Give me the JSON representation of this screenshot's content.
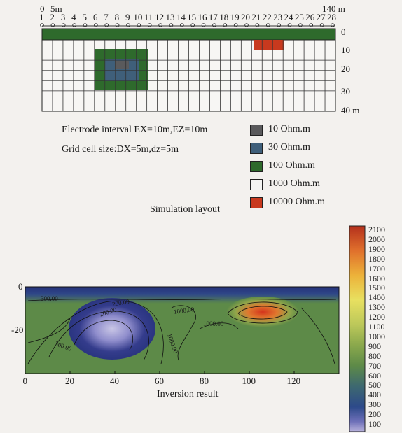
{
  "layout": {
    "top_axis_start": "0",
    "top_axis_5m": "5m",
    "top_axis_end": "140 m",
    "electrode_numbers": [
      "1",
      "2",
      "3",
      "4",
      "5",
      "6",
      "7",
      "8",
      "9",
      "10",
      "11",
      "12",
      "13",
      "14",
      "15",
      "16",
      "17",
      "18",
      "19",
      "20",
      "21",
      "22",
      "23",
      "24",
      "25",
      "26",
      "27",
      "28"
    ],
    "depth_labels": [
      "0",
      "10",
      "20",
      "30",
      "40 m"
    ],
    "electrode_interval": "Electrode interval EX=10m,EZ=10m",
    "grid_cell_size": "Grid cell size:DX=5m,dz=5m",
    "caption": "Simulation layout"
  },
  "legend": [
    {
      "label": "10 Ohm.m",
      "color": "#5a5a5c"
    },
    {
      "label": "30 Ohm.m",
      "color": "#3f5f7a"
    },
    {
      "label": "100 Ohm.m",
      "color": "#2e6a2c"
    },
    {
      "label": "1000 Ohm.m",
      "color": "#f4f4f2"
    },
    {
      "label": "10000 Ohm.m",
      "color": "#c8391e"
    }
  ],
  "inversion": {
    "caption": "Inversion result",
    "x_ticks": [
      "0",
      "20",
      "40",
      "60",
      "80",
      "100",
      "120"
    ],
    "y_ticks": [
      "0",
      "-20"
    ],
    "contour_labels": [
      "200.00",
      "200.00",
      "1000.00",
      "1000.00",
      "1000.00",
      "300.00",
      "300.00"
    ]
  },
  "colorbar": {
    "ticks": [
      "2100",
      "2000",
      "1900",
      "1800",
      "1700",
      "1600",
      "1500",
      "1400",
      "1300",
      "1200",
      "1100",
      "1000",
      "900",
      "800",
      "700",
      "600",
      "500",
      "400",
      "300",
      "200",
      "100"
    ]
  },
  "chart_data": [
    {
      "type": "heatmap",
      "title": "Inversion result",
      "xlim": [
        0,
        140
      ],
      "ylim": [
        -30,
        0
      ],
      "x_ticks": [
        0,
        20,
        40,
        60,
        80,
        100,
        120
      ],
      "y_ticks": [
        0,
        -20
      ],
      "colorbar": {
        "min": 100,
        "max": 2100,
        "step": 100
      },
      "features": [
        {
          "description": "low-resistivity body",
          "x_center": 40,
          "depth_center": -20,
          "value_min": 100
        },
        {
          "description": "high-resistivity body",
          "x_center": 107,
          "depth_center": -7,
          "value_max": 2100
        },
        {
          "description": "background",
          "value": 800
        }
      ]
    }
  ]
}
